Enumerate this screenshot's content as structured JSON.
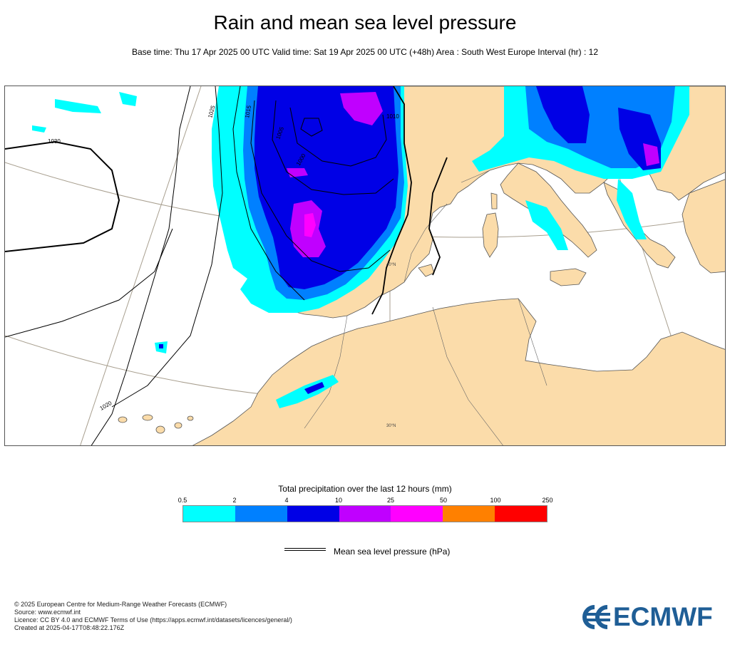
{
  "header": {
    "title": "Rain and mean sea level pressure",
    "subtitle": "Base time: Thu 17 Apr 2025 00 UTC Valid time: Sat 19 Apr 2025 00 UTC (+48h) Area : South West Europe Interval (hr) : 12"
  },
  "map": {
    "isobars": [
      "1030",
      "1025",
      "1020",
      "1015",
      "1010",
      "1005",
      "1000"
    ],
    "graticule_labels": [
      "40°N",
      "30°N"
    ],
    "colors": {
      "land": "#fbdcaa",
      "sea": "#ffffff",
      "isobar": "#000000",
      "graticule": "#a89f8f"
    }
  },
  "legend": {
    "title": "Total precipitation over the last 12 hours (mm)",
    "ticks": [
      "0.5",
      "2",
      "4",
      "10",
      "25",
      "50",
      "100",
      "250"
    ],
    "colors": [
      "#00ffff",
      "#0080ff",
      "#0000e6",
      "#c000ff",
      "#ff00ff",
      "#ff8000",
      "#ff0000"
    ],
    "mslp_label": "Mean sea level pressure (hPa)"
  },
  "footer": {
    "lines": [
      "© 2025 European Centre for Medium-Range Weather Forecasts (ECMWF)",
      "Source: www.ecmwf.int",
      "Licence: CC BY 4.0 and ECMWF Terms of Use (https://apps.ecmwf.int/datasets/licences/general/)",
      "Created at 2025-04-17T08:48:22.176Z"
    ]
  },
  "logo": {
    "text": "ECMWF",
    "color": "#1f5e96"
  }
}
